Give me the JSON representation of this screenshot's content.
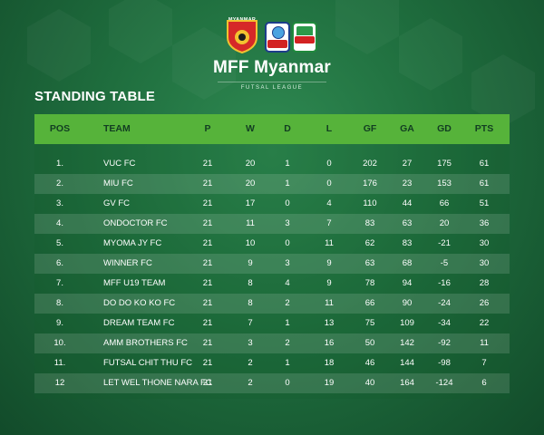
{
  "header": {
    "crest_label": "MYANMAR",
    "brand_mff": "MFF",
    "brand_name": "Myanmar",
    "league": "FUTSAL LEAGUE",
    "badge_futsal_icon": "futsal-trophy-icon",
    "badge_myanmar_icon": "myanmar-beer-icon"
  },
  "section_title": "STANDING TABLE",
  "columns": [
    "POS",
    "TEAM",
    "P",
    "W",
    "D",
    "L",
    "GF",
    "GA",
    "GD",
    "PTS"
  ],
  "rows": [
    {
      "pos": "1.",
      "team": "VUC FC",
      "p": "21",
      "w": "20",
      "d": "1",
      "l": "0",
      "gf": "202",
      "ga": "27",
      "gd": "175",
      "pts": "61"
    },
    {
      "pos": "2.",
      "team": "MIU FC",
      "p": "21",
      "w": "20",
      "d": "1",
      "l": "0",
      "gf": "176",
      "ga": "23",
      "gd": "153",
      "pts": "61"
    },
    {
      "pos": "3.",
      "team": "GV FC",
      "p": "21",
      "w": "17",
      "d": "0",
      "l": "4",
      "gf": "110",
      "ga": "44",
      "gd": "66",
      "pts": "51"
    },
    {
      "pos": "4.",
      "team": "ONDOCTOR FC",
      "p": "21",
      "w": "11",
      "d": "3",
      "l": "7",
      "gf": "83",
      "ga": "63",
      "gd": "20",
      "pts": "36"
    },
    {
      "pos": "5.",
      "team": "MYOMA JY FC",
      "p": "21",
      "w": "10",
      "d": "0",
      "l": "11",
      "gf": "62",
      "ga": "83",
      "gd": "-21",
      "pts": "30"
    },
    {
      "pos": "6.",
      "team": "WINNER FC",
      "p": "21",
      "w": "9",
      "d": "3",
      "l": "9",
      "gf": "63",
      "ga": "68",
      "gd": "-5",
      "pts": "30"
    },
    {
      "pos": "7.",
      "team": "MFF U19 TEAM",
      "p": "21",
      "w": "8",
      "d": "4",
      "l": "9",
      "gf": "78",
      "ga": "94",
      "gd": "-16",
      "pts": "28"
    },
    {
      "pos": "8.",
      "team": "DO DO KO KO FC",
      "p": "21",
      "w": "8",
      "d": "2",
      "l": "11",
      "gf": "66",
      "ga": "90",
      "gd": "-24",
      "pts": "26"
    },
    {
      "pos": "9.",
      "team": "DREAM TEAM FC",
      "p": "21",
      "w": "7",
      "d": "1",
      "l": "13",
      "gf": "75",
      "ga": "109",
      "gd": "-34",
      "pts": "22"
    },
    {
      "pos": "10.",
      "team": "AMM BROTHERS FC",
      "p": "21",
      "w": "3",
      "d": "2",
      "l": "16",
      "gf": "50",
      "ga": "142",
      "gd": "-92",
      "pts": "11"
    },
    {
      "pos": "11.",
      "team": "FUTSAL CHIT THU FC",
      "p": "21",
      "w": "2",
      "d": "1",
      "l": "18",
      "gf": "46",
      "ga": "144",
      "gd": "-98",
      "pts": "7"
    },
    {
      "pos": "12",
      "team": "LET WEL THONE NARA FC",
      "p": "21",
      "w": "2",
      "d": "0",
      "l": "19",
      "gf": "40",
      "ga": "164",
      "gd": "-124",
      "pts": "6"
    }
  ],
  "colors": {
    "header_green": "#56b33a",
    "header_text": "#123d22",
    "background_dark": "#124b2a",
    "background_light": "#2f8a52"
  }
}
